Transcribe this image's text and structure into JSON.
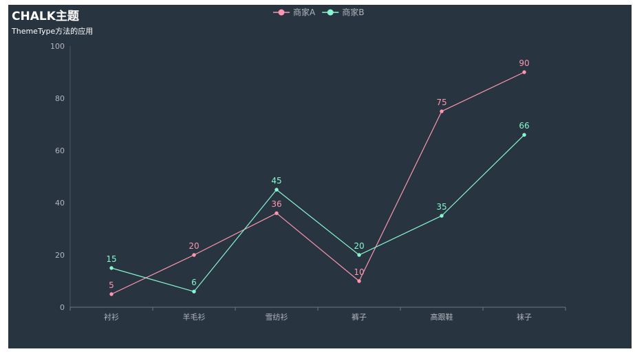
{
  "chart_data": {
    "type": "line",
    "title": "CHALK主题",
    "subtitle": "ThemeType方法的应用",
    "categories": [
      "衬衫",
      "羊毛衫",
      "雪纺衫",
      "裤子",
      "高跟鞋",
      "袜子"
    ],
    "series": [
      {
        "name": "商家A",
        "values": [
          5,
          20,
          36,
          10,
          75,
          90
        ],
        "color": "#fc97af"
      },
      {
        "name": "商家B",
        "values": [
          15,
          6,
          45,
          20,
          35,
          66
        ],
        "color": "#87f7cf"
      }
    ],
    "ylim": [
      0,
      100
    ],
    "yticks": [
      0,
      20,
      40,
      60,
      80,
      100
    ],
    "legend_position": "top-center",
    "grid": false,
    "show_data_labels": true,
    "background": "#293441"
  }
}
